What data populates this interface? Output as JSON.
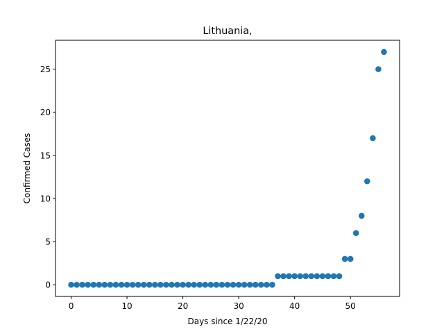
{
  "chart_data": {
    "type": "scatter",
    "title": "Lithuania,",
    "xlabel": "Days since 1/22/20",
    "ylabel": "Confirmed Cases",
    "xlim": [
      -2.8,
      58.8
    ],
    "ylim": [
      -1.35,
      28.35
    ],
    "xticks": [
      0,
      10,
      20,
      30,
      40,
      50
    ],
    "yticks": [
      0,
      5,
      10,
      15,
      20,
      25
    ],
    "grid": false,
    "legend": "none",
    "marker_color": "#1f77b4",
    "x": [
      0,
      1,
      2,
      3,
      4,
      5,
      6,
      7,
      8,
      9,
      10,
      11,
      12,
      13,
      14,
      15,
      16,
      17,
      18,
      19,
      20,
      21,
      22,
      23,
      24,
      25,
      26,
      27,
      28,
      29,
      30,
      31,
      32,
      33,
      34,
      35,
      36,
      37,
      38,
      39,
      40,
      41,
      42,
      43,
      44,
      45,
      46,
      47,
      48,
      49,
      50,
      51,
      52,
      53,
      54,
      55,
      56
    ],
    "y": [
      0,
      0,
      0,
      0,
      0,
      0,
      0,
      0,
      0,
      0,
      0,
      0,
      0,
      0,
      0,
      0,
      0,
      0,
      0,
      0,
      0,
      0,
      0,
      0,
      0,
      0,
      0,
      0,
      0,
      0,
      0,
      0,
      0,
      0,
      0,
      0,
      0,
      1,
      1,
      1,
      1,
      1,
      1,
      1,
      1,
      1,
      1,
      1,
      1,
      3,
      3,
      6,
      8,
      12,
      17,
      25,
      27
    ]
  }
}
